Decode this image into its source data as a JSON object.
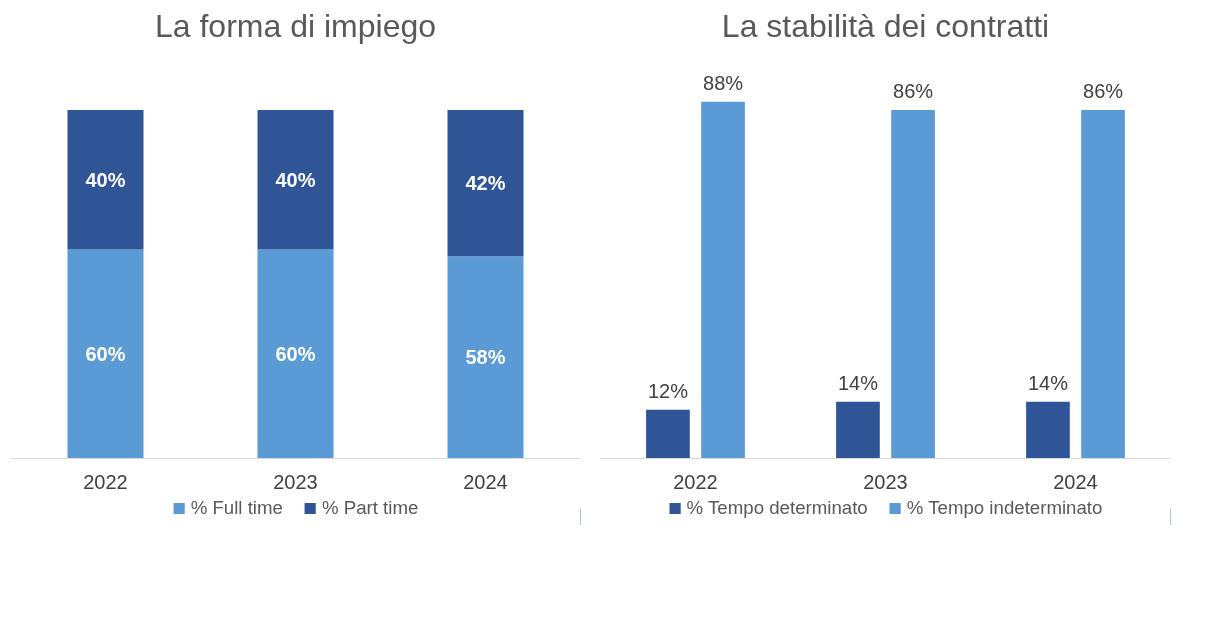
{
  "chart_data": [
    {
      "type": "bar",
      "title": "La forma di impiego",
      "categories": [
        "2022",
        "2023",
        "2024"
      ],
      "stacked": true,
      "legend": "bottom",
      "grid": false,
      "series": [
        {
          "name": "% Full time",
          "color": "#5b9bd5",
          "values": [
            60,
            60,
            58
          ],
          "value_labels": [
            "60%",
            "60%",
            "58%"
          ]
        },
        {
          "name": "% Part time",
          "color": "#2f5597",
          "values": [
            40,
            40,
            42
          ],
          "value_labels": [
            "40%",
            "40%",
            "42%"
          ]
        }
      ]
    },
    {
      "type": "bar",
      "title": "La stabilità dei contratti",
      "categories": [
        "2022",
        "2023",
        "2024"
      ],
      "legend": "bottom",
      "grid": false,
      "series": [
        {
          "name": "% Tempo determinato",
          "color": "#2f5597",
          "values": [
            12,
            14,
            14
          ],
          "value_labels": [
            "12%",
            "14%",
            "14%"
          ]
        },
        {
          "name": "% Tempo indeterminato",
          "color": "#5b9bd5",
          "values": [
            88,
            86,
            86
          ],
          "value_labels": [
            "88%",
            "86%",
            "86%"
          ]
        }
      ]
    }
  ]
}
